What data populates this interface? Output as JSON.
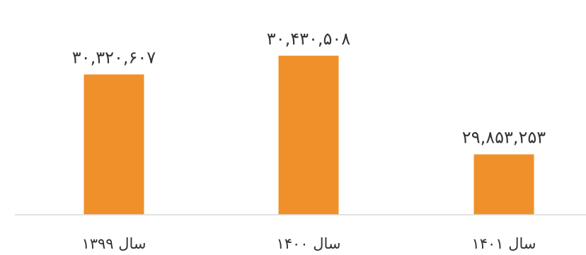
{
  "chart_data": {
    "type": "bar",
    "categories": [
      "سال ۱۳۹۹",
      "سال ۱۴۰۰",
      "سال ۱۴۰۱"
    ],
    "values": [
      30320607,
      30430508,
      29853253
    ],
    "value_labels": [
      "۳۰,۳۲۰,۶۰۷",
      "۳۰,۴۳۰,۵۰۸",
      "۲۹,۸۵۳,۲۵۳"
    ],
    "title": "",
    "xlabel": "",
    "ylabel": "",
    "ylim": [
      29500000,
      30500000
    ],
    "grid": false,
    "legend": "none",
    "bar_color": "#f0902a",
    "axis_color": "#d9d9d9",
    "text_color": "#333333"
  }
}
